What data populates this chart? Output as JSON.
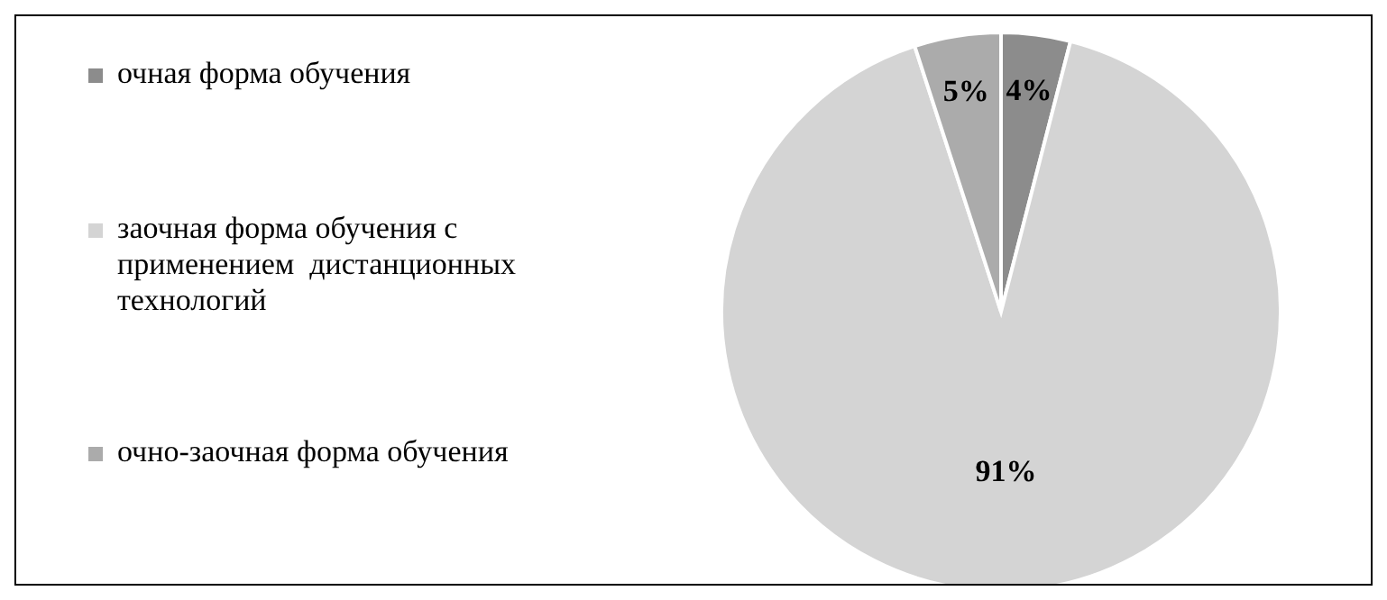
{
  "chart_data": {
    "type": "pie",
    "categories": [
      "очная форма обучения",
      "заочная форма обучения с применением  дистанционных технологий",
      "очно-заочная форма обучения"
    ],
    "values": [
      4,
      91,
      5
    ],
    "value_labels": [
      "4%",
      "91%",
      "5%"
    ],
    "colors": [
      "#8c8c8c",
      "#d4d4d4",
      "#ababab"
    ],
    "legend": "left"
  }
}
